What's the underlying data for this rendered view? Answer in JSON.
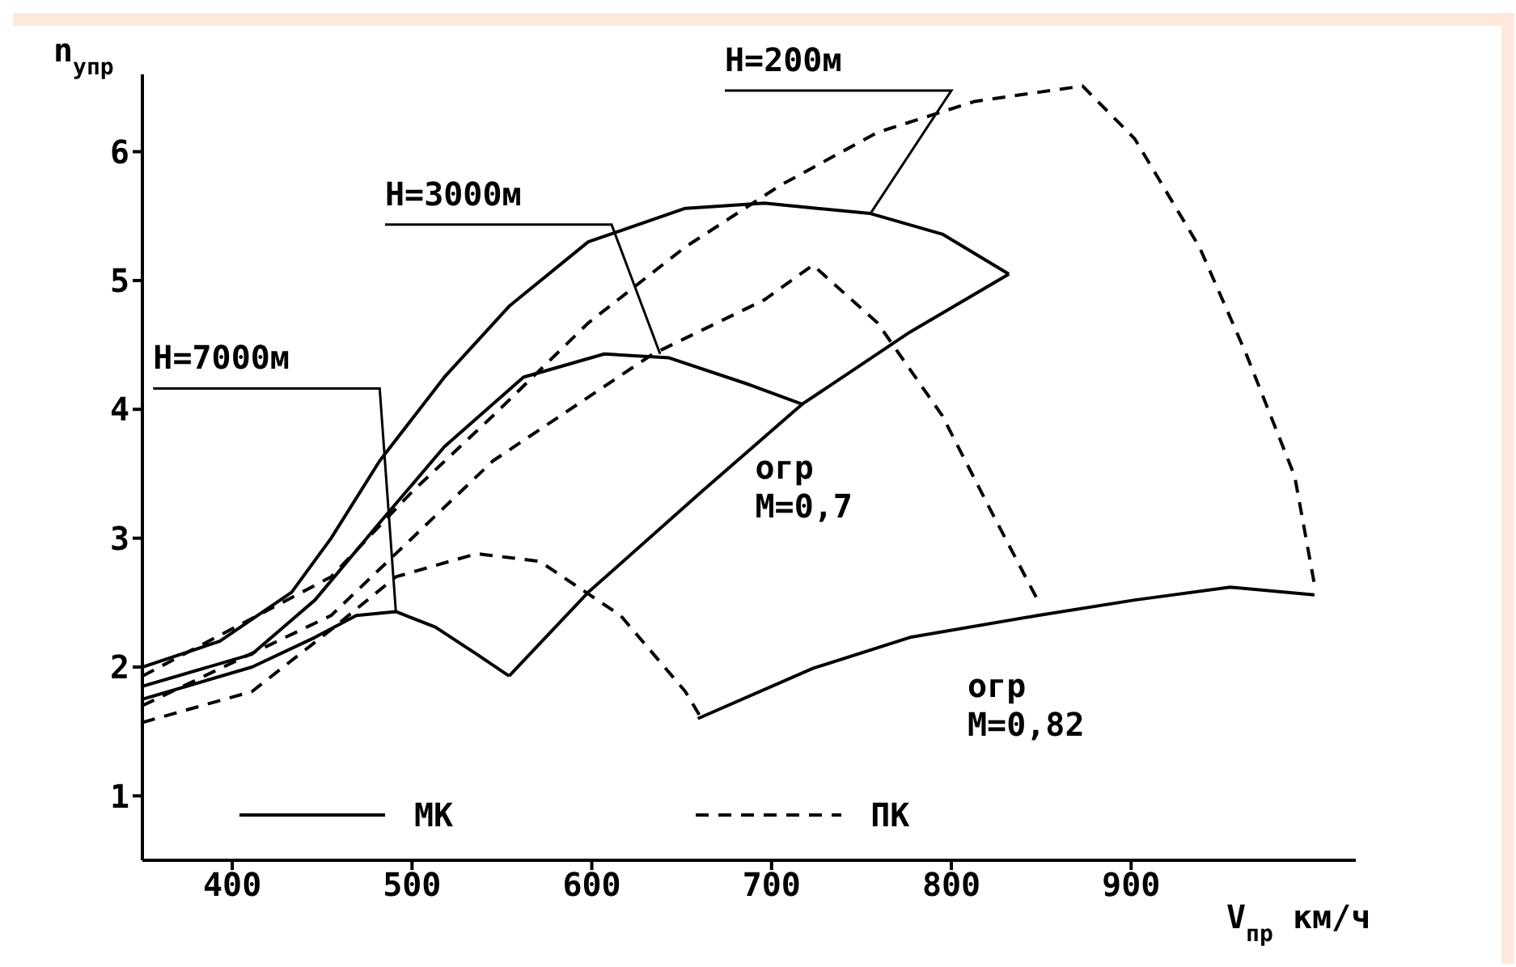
{
  "chart_data": {
    "type": "line",
    "xlabel": "V$_{пр}$ км/ч",
    "ylabel": "n$_{yпр}$",
    "xlim": [
      350,
      1025
    ],
    "xticks": [
      400,
      500,
      600,
      700,
      800,
      900
    ],
    "ylim": [
      0.5,
      6.6
    ],
    "yticks": [
      1,
      2,
      3,
      4,
      5,
      6
    ],
    "legend": "bottom",
    "marker": "none",
    "series": [
      {
        "name": "МК",
        "color": "#000000",
        "line_style": "solid",
        "x": [
          350,
          393,
          433,
          455,
          482,
          518,
          554,
          598,
          652,
          696,
          755,
          795,
          832
        ],
        "values": [
          2.0,
          2.2,
          2.58,
          3.0,
          3.6,
          4.25,
          4.8,
          5.3,
          5.56,
          5.6,
          5.52,
          5.36,
          5.05
        ]
      },
      {
        "color": "#000000",
        "line_style": "solid",
        "x": [
          350,
          411,
          446,
          482,
          518,
          562,
          607,
          643,
          688,
          717
        ],
        "values": [
          1.85,
          2.1,
          2.52,
          3.12,
          3.71,
          4.25,
          4.43,
          4.4,
          4.19,
          4.04
        ]
      },
      {
        "color": "#000000",
        "line_style": "solid",
        "x": [
          350,
          411,
          446,
          469,
          491,
          513,
          536,
          554
        ],
        "values": [
          1.75,
          2.0,
          2.23,
          2.4,
          2.43,
          2.31,
          2.1,
          1.93
        ]
      },
      {
        "color": "#000000",
        "line_style": "solid",
        "x": [
          554,
          598,
          661,
          717,
          777,
          832
        ],
        "values": [
          1.93,
          2.58,
          3.36,
          4.04,
          4.6,
          5.05
        ]
      },
      {
        "color": "#000000",
        "line_style": "solid",
        "x": [
          659,
          723,
          777,
          848,
          902,
          955,
          1002
        ],
        "values": [
          1.6,
          1.99,
          2.23,
          2.4,
          2.52,
          2.62,
          2.56
        ]
      },
      {
        "name": "ПК",
        "color": "#000000",
        "line_style": "dashed",
        "x": [
          350,
          455,
          500,
          545,
          598,
          652,
          705,
          759,
          813,
          873,
          902,
          938,
          964,
          991,
          1002
        ],
        "values": [
          1.93,
          2.7,
          3.36,
          3.95,
          4.67,
          5.26,
          5.74,
          6.15,
          6.39,
          6.51,
          6.1,
          5.26,
          4.43,
          3.48,
          2.64
        ]
      },
      {
        "color": "#000000",
        "line_style": "dashed",
        "x": [
          350,
          455,
          545,
          634,
          696,
          723,
          759,
          795,
          821,
          848
        ],
        "values": [
          1.7,
          2.4,
          3.6,
          4.43,
          4.85,
          5.12,
          4.67,
          3.95,
          3.24,
          2.52
        ]
      },
      {
        "color": "#000000",
        "line_style": "dashed",
        "x": [
          350,
          411,
          455,
          491,
          536,
          571,
          616,
          652,
          661
        ],
        "values": [
          1.57,
          1.81,
          2.29,
          2.7,
          2.88,
          2.82,
          2.4,
          1.81,
          1.6
        ]
      }
    ],
    "annotations": [
      {
        "text": "H=200м",
        "x": 755,
        "y": 5.52
      },
      {
        "text": "H=3000м",
        "x": 638,
        "y": 4.43
      },
      {
        "text": "H=7000м",
        "x": 491,
        "y": 2.43
      },
      "огр\nM=0,7",
      "огр\nM=0,82"
    ]
  }
}
